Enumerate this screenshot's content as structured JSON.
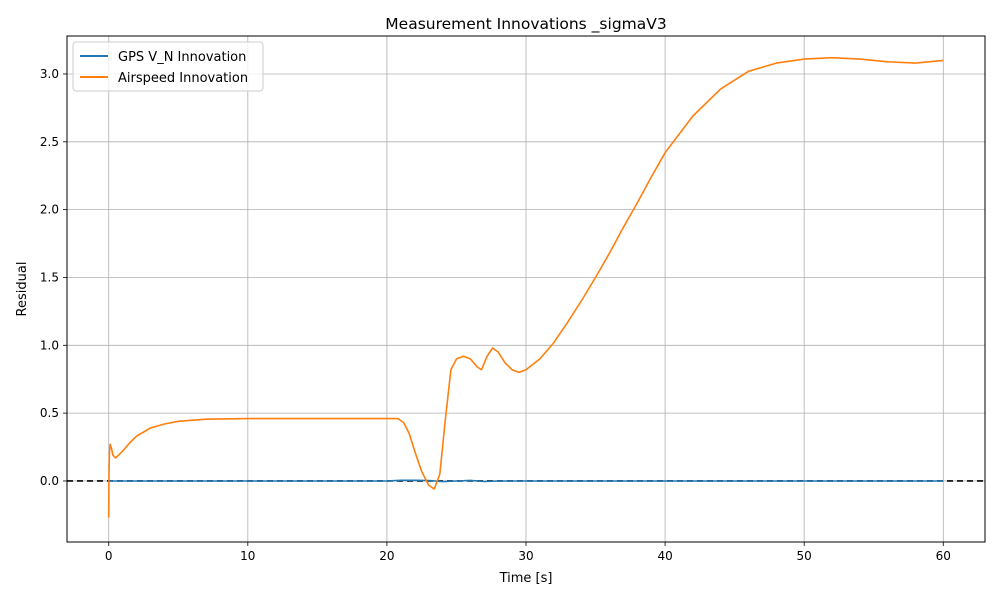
{
  "chart_data": {
    "type": "line",
    "title": "Measurement Innovations _sigmaV3",
    "xlabel": "Time [s]",
    "ylabel": "Residual",
    "xlim": [
      -3,
      63
    ],
    "ylim": [
      -0.45,
      3.28
    ],
    "xticks": [
      0,
      10,
      20,
      30,
      40,
      50,
      60
    ],
    "xtick_labels": [
      "0",
      "10",
      "20",
      "30",
      "40",
      "50",
      "60"
    ],
    "yticks": [
      0.0,
      0.5,
      1.0,
      1.5,
      2.0,
      2.5,
      3.0
    ],
    "ytick_labels": [
      "0.0",
      "0.5",
      "1.0",
      "1.5",
      "2.0",
      "2.5",
      "3.0"
    ],
    "grid": true,
    "legend_position": "upper-left",
    "reference_line": {
      "y": 0,
      "style": "dashed",
      "color": "#000000"
    },
    "series": [
      {
        "name": "GPS V_N Innovation",
        "color": "#1f77b4",
        "x": [
          0,
          10,
          20,
          21,
          22,
          23,
          24,
          25,
          26,
          27,
          28,
          30,
          40,
          50,
          60
        ],
        "y": [
          0,
          0,
          0,
          0.005,
          0.005,
          0.003,
          -0.005,
          0,
          0.004,
          -0.004,
          0,
          0,
          0,
          0,
          0
        ]
      },
      {
        "name": "Airspeed Innovation",
        "color": "#ff7f0e",
        "x": [
          0,
          0.02,
          0.05,
          0.1,
          0.2,
          0.3,
          0.5,
          1,
          1.5,
          2,
          3,
          4,
          5,
          7,
          10,
          15,
          20,
          20.8,
          21.2,
          21.6,
          22,
          22.5,
          23,
          23.4,
          23.8,
          24.2,
          24.6,
          25,
          25.5,
          26,
          26.5,
          26.8,
          27.2,
          27.6,
          28,
          28.5,
          29,
          29.5,
          30,
          31,
          32,
          33,
          34,
          35,
          36,
          37,
          38,
          39,
          40,
          42,
          44,
          46,
          48,
          50,
          52,
          54,
          56,
          58,
          60
        ],
        "y": [
          -0.27,
          0.05,
          0.2,
          0.27,
          0.24,
          0.19,
          0.17,
          0.22,
          0.28,
          0.33,
          0.39,
          0.42,
          0.44,
          0.455,
          0.46,
          0.46,
          0.46,
          0.46,
          0.43,
          0.35,
          0.22,
          0.07,
          -0.03,
          -0.06,
          0.05,
          0.45,
          0.82,
          0.9,
          0.92,
          0.9,
          0.84,
          0.82,
          0.92,
          0.98,
          0.95,
          0.87,
          0.82,
          0.8,
          0.82,
          0.9,
          1.02,
          1.17,
          1.33,
          1.5,
          1.68,
          1.87,
          2.05,
          2.24,
          2.42,
          2.69,
          2.89,
          3.02,
          3.08,
          3.11,
          3.12,
          3.11,
          3.09,
          3.08,
          3.1
        ]
      }
    ]
  }
}
